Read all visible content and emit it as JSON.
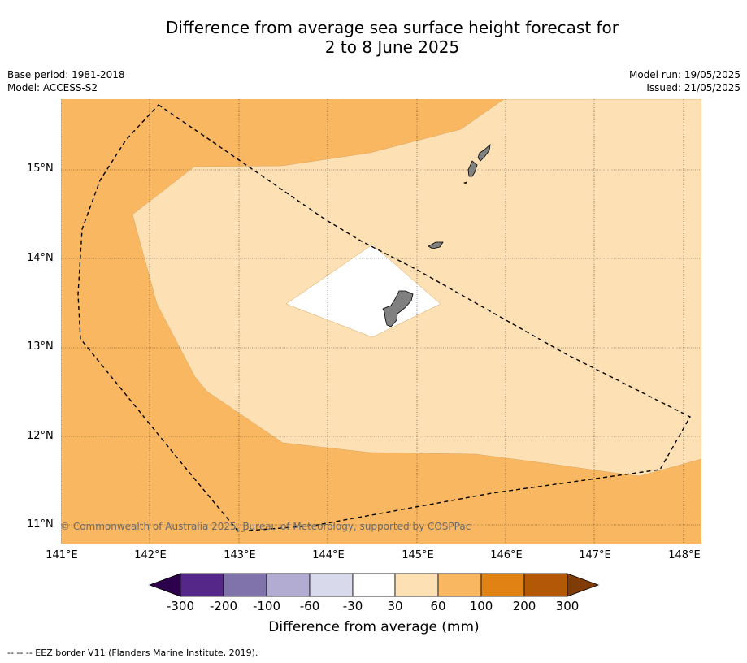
{
  "header": {
    "title_line1": "Difference from average sea surface height forecast for",
    "title_line2": "2 to 8 June 2025",
    "base_period": "Base period: 1981-2018",
    "model": "Model: ACCESS-S2",
    "model_run": "Model run: 19/05/2025",
    "issued": "Issued: 21/05/2025"
  },
  "map": {
    "latitudes": [
      "15°N",
      "14°N",
      "13°N",
      "12°N",
      "11°N"
    ],
    "longitudes": [
      "141°E",
      "142°E",
      "143°E",
      "144°E",
      "145°E",
      "146°E",
      "147°E",
      "148°E"
    ],
    "copyright": "© Commonwealth of Australia 2025, Bureau of Meteorology, supported by COSPPac",
    "colors": {
      "band_60_100": "#fab761",
      "band_30_60": "#fde0b4",
      "band_neutral": "#ffffff",
      "land": "#808080"
    }
  },
  "colorbar": {
    "ticks": [
      "-300",
      "-200",
      "-100",
      "-60",
      "-30",
      "30",
      "60",
      "100",
      "200",
      "300"
    ],
    "colors": [
      "#2d004b",
      "#542788",
      "#8073ac",
      "#b2abd2",
      "#d8daeb",
      "#ffffff",
      "#fde0b4",
      "#fab761",
      "#e08214",
      "#b35806",
      "#7f3b08"
    ],
    "label": "Difference from average (mm)"
  },
  "footnote": "--  --  -- EEZ border V11 (Flanders Marine Institute, 2019)."
}
